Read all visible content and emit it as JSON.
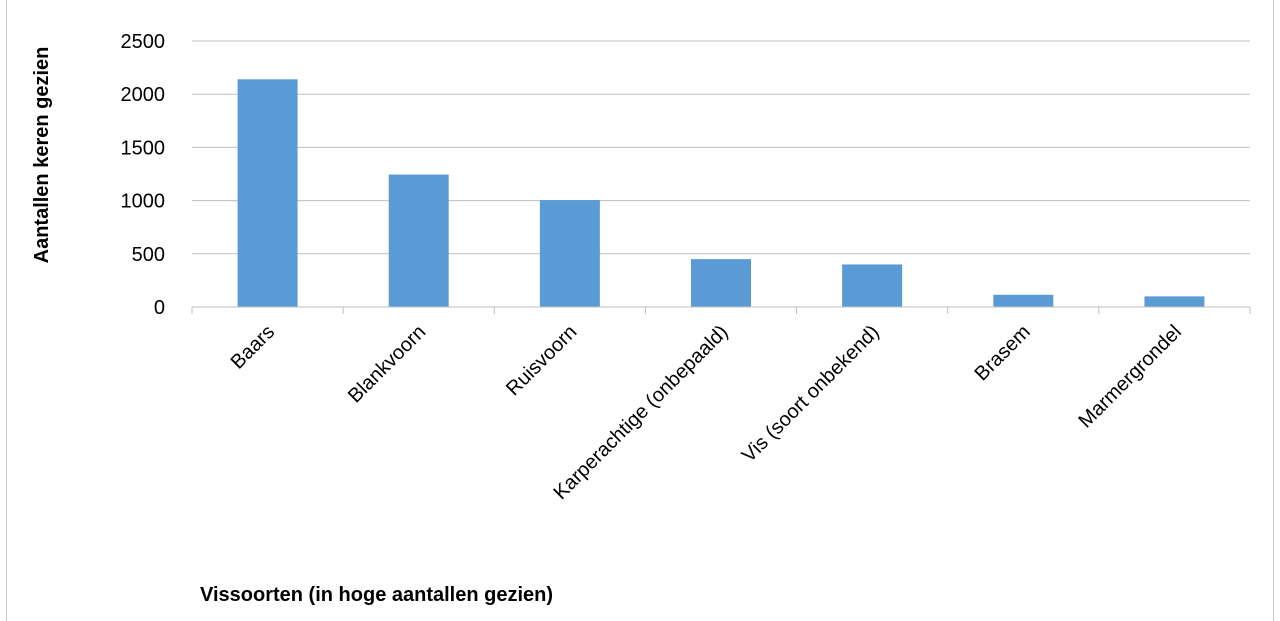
{
  "chart_data": {
    "type": "bar",
    "title": "",
    "xlabel": "Vissoorten (in hoge aantallen gezien)",
    "ylabel": "Aantallen keren gezien",
    "categories": [
      "Baars",
      "Blankvoorn",
      "Ruisvoorn",
      "Karperachtige (onbepaald)",
      "Vis (soort onbekend)",
      "Brasem",
      "Marmergrondel"
    ],
    "values": [
      2140,
      1245,
      1005,
      450,
      400,
      115,
      100
    ],
    "ylim": [
      0,
      2500
    ],
    "yticks": [
      0,
      500,
      1000,
      1500,
      2000,
      2500
    ],
    "grid": true,
    "legend": "none",
    "bar_color": "#5b9bd5",
    "grid_color": "#bfbfbf"
  }
}
